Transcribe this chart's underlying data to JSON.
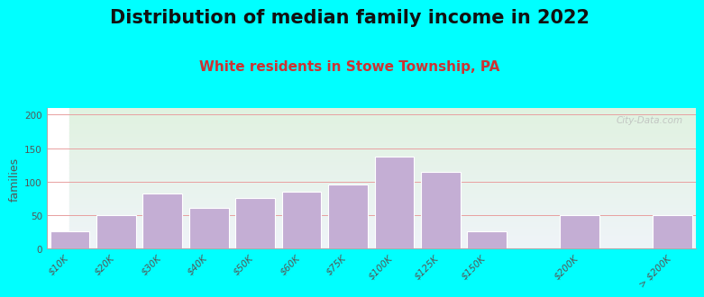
{
  "title": "Distribution of median family income in 2022",
  "subtitle": "White residents in Stowe Township, PA",
  "ylabel": "families",
  "categories_full": [
    "$10K",
    "$20K",
    "$30K",
    "$40K",
    "$50K",
    "$60K",
    "$75K",
    "$100K",
    "$125K",
    "$150K",
    "",
    "$200K",
    "",
    "> $200K"
  ],
  "values_full": [
    25,
    50,
    82,
    60,
    75,
    85,
    95,
    138,
    115,
    25,
    0,
    50,
    0,
    50
  ],
  "bar_color": "#C4AED4",
  "bar_edge_color": "#ffffff",
  "background_color": "#00FFFF",
  "grid_color": "#e8a0a0",
  "title_fontsize": 15,
  "subtitle_fontsize": 11,
  "subtitle_color": "#cc3333",
  "ylabel_fontsize": 9,
  "tick_fontsize": 7.5,
  "ylim": [
    0,
    210
  ],
  "yticks": [
    0,
    50,
    100,
    150,
    200
  ],
  "watermark": "City-Data.com"
}
